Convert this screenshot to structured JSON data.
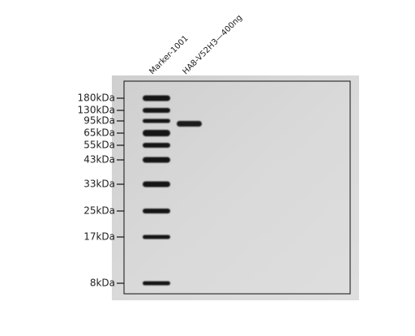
{
  "lanes": [
    "Marker-1001",
    "HA8-V52H3—400ng"
  ],
  "markers": [
    "180kDa",
    "130kDa",
    "95kDa",
    "65kDa",
    "55kDa",
    "43kDa",
    "33kDa",
    "25kDa",
    "17kDa",
    "8kDa"
  ]
}
